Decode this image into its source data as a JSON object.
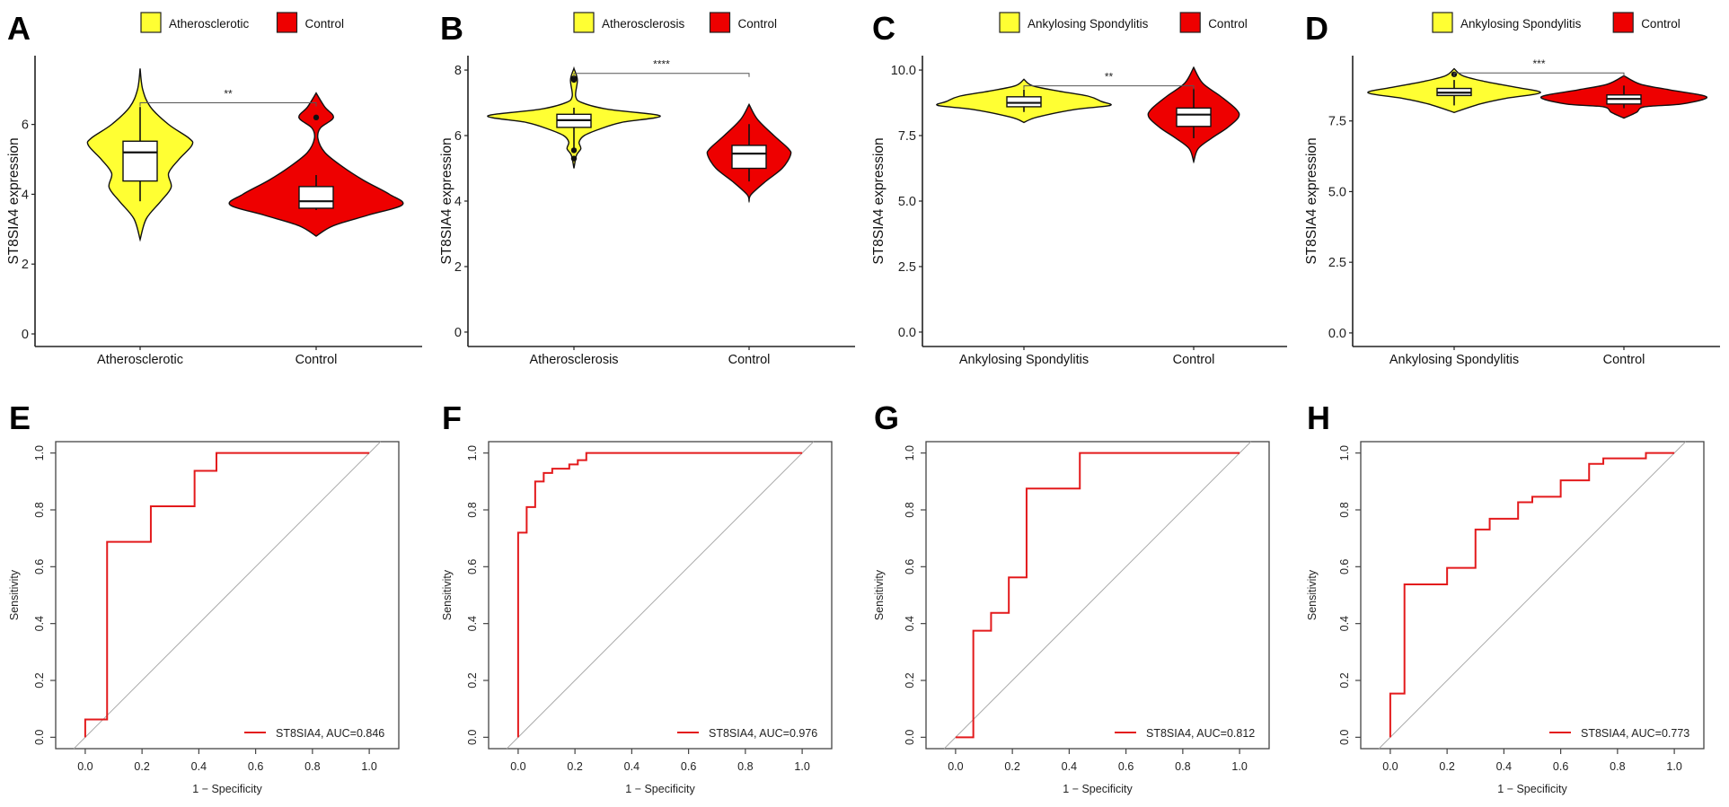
{
  "chart_data": [
    {
      "panel": "A",
      "type": "violin",
      "ylabel": "ST8SIA4 expression",
      "ylim": [
        -0.36,
        7.97
      ],
      "yticks": [
        0,
        2,
        4,
        6
      ],
      "ytick_labels": [
        "0",
        "2",
        "4",
        "6"
      ],
      "legend": [
        "Atherosclerotic",
        "Control"
      ],
      "categories": [
        "Atherosclerotic",
        "Control"
      ],
      "significance": {
        "label": "**",
        "y": 6.62
      },
      "groups": [
        {
          "name": "Atherosclerotic",
          "color": "#ffff33",
          "width_scale": 0.6,
          "density": [
            [
              7.6,
              0
            ],
            [
              7.0,
              0.05
            ],
            [
              6.5,
              0.2
            ],
            [
              6.0,
              0.55
            ],
            [
              5.6,
              0.95
            ],
            [
              5.4,
              1.0
            ],
            [
              5.0,
              0.75
            ],
            [
              4.6,
              0.55
            ],
            [
              4.2,
              0.6
            ],
            [
              3.8,
              0.4
            ],
            [
              3.3,
              0.12
            ],
            [
              2.7,
              0
            ]
          ],
          "box": {
            "q1": 4.38,
            "median": 5.2,
            "q3": 5.52,
            "lower": 3.8,
            "upper": 6.5
          },
          "outliers": []
        },
        {
          "name": "Control",
          "color": "#ee0000",
          "width_scale": 1.0,
          "density": [
            [
              6.9,
              0
            ],
            [
              6.5,
              0.1
            ],
            [
              6.2,
              0.2
            ],
            [
              5.9,
              0.05
            ],
            [
              5.6,
              0.02
            ],
            [
              5.2,
              0.1
            ],
            [
              4.8,
              0.3
            ],
            [
              4.4,
              0.55
            ],
            [
              4.0,
              0.85
            ],
            [
              3.7,
              1.0
            ],
            [
              3.4,
              0.6
            ],
            [
              3.1,
              0.2
            ],
            [
              2.8,
              0
            ]
          ],
          "box": {
            "q1": 3.6,
            "median": 3.8,
            "q3": 4.22,
            "lower": 3.55,
            "upper": 4.55
          },
          "outliers": [
            6.2
          ]
        }
      ]
    },
    {
      "panel": "B",
      "type": "violin",
      "ylabel": "ST8SIA4 expression",
      "ylim": [
        -0.44,
        8.44
      ],
      "yticks": [
        0,
        2,
        4,
        6,
        8
      ],
      "ytick_labels": [
        "0",
        "2",
        "4",
        "6",
        "8"
      ],
      "legend": [
        "Atherosclerosis",
        "Control"
      ],
      "categories": [
        "Atherosclerosis",
        "Control"
      ],
      "significance": {
        "label": "****",
        "y": 7.9
      },
      "groups": [
        {
          "name": "Atherosclerosis",
          "color": "#ffff33",
          "width_scale": 1.0,
          "density": [
            [
              8.05,
              0
            ],
            [
              7.7,
              0.04
            ],
            [
              7.2,
              0.02
            ],
            [
              7.0,
              0.1
            ],
            [
              6.8,
              0.4
            ],
            [
              6.6,
              1.0
            ],
            [
              6.4,
              0.55
            ],
            [
              6.2,
              0.3
            ],
            [
              6.0,
              0.12
            ],
            [
              5.8,
              0.06
            ],
            [
              5.6,
              0.08
            ],
            [
              5.4,
              0.03
            ],
            [
              5.0,
              0
            ]
          ],
          "box": {
            "q1": 6.25,
            "median": 6.47,
            "q3": 6.65,
            "lower": 5.6,
            "upper": 6.85
          },
          "outliers": [
            7.7,
            7.75,
            5.55,
            5.3
          ]
        },
        {
          "name": "Control",
          "color": "#ee0000",
          "width_scale": 0.48,
          "density": [
            [
              6.95,
              0
            ],
            [
              6.5,
              0.2
            ],
            [
              6.0,
              0.6
            ],
            [
              5.6,
              0.95
            ],
            [
              5.4,
              1.0
            ],
            [
              5.0,
              0.8
            ],
            [
              4.6,
              0.4
            ],
            [
              4.2,
              0.05
            ],
            [
              4.0,
              0
            ]
          ],
          "box": {
            "q1": 5.0,
            "median": 5.45,
            "q3": 5.7,
            "lower": 4.6,
            "upper": 6.35
          },
          "outliers": []
        }
      ]
    },
    {
      "panel": "C",
      "type": "violin",
      "ylabel": "ST8SIA4 expression",
      "ylim": [
        -0.55,
        10.55
      ],
      "yticks": [
        0,
        2.5,
        5,
        7.5,
        10
      ],
      "ytick_labels": [
        "0.0",
        "2.5",
        "5.0",
        "7.5",
        "10.0"
      ],
      "legend": [
        "Ankylosing Spondylitis",
        "Control"
      ],
      "categories": [
        "Ankylosing Spondylitis",
        "Control"
      ],
      "significance": {
        "label": "**",
        "y": 9.4
      },
      "groups": [
        {
          "name": "Ankylosing Spondylitis",
          "color": "#ffff33",
          "width_scale": 1.0,
          "density": [
            [
              9.65,
              0
            ],
            [
              9.4,
              0.1
            ],
            [
              9.2,
              0.4
            ],
            [
              9.0,
              0.75
            ],
            [
              8.8,
              0.9
            ],
            [
              8.65,
              1.0
            ],
            [
              8.5,
              0.6
            ],
            [
              8.2,
              0.15
            ],
            [
              8.0,
              0
            ]
          ],
          "box": {
            "q1": 8.6,
            "median": 8.75,
            "q3": 8.98,
            "lower": 8.4,
            "upper": 9.25
          },
          "outliers": []
        },
        {
          "name": "Control",
          "color": "#ee0000",
          "width_scale": 0.52,
          "density": [
            [
              10.1,
              0
            ],
            [
              9.5,
              0.2
            ],
            [
              9.0,
              0.6
            ],
            [
              8.5,
              0.95
            ],
            [
              8.2,
              1.0
            ],
            [
              7.8,
              0.75
            ],
            [
              7.4,
              0.4
            ],
            [
              7.0,
              0.1
            ],
            [
              6.5,
              0
            ]
          ],
          "box": {
            "q1": 7.85,
            "median": 8.3,
            "q3": 8.55,
            "lower": 7.4,
            "upper": 9.3
          },
          "outliers": []
        }
      ]
    },
    {
      "panel": "D",
      "type": "violin",
      "ylabel": "ST8SIA4 expression",
      "ylim": [
        -0.48,
        9.81
      ],
      "yticks": [
        0,
        2.5,
        5,
        7.5
      ],
      "ytick_labels": [
        "0.0",
        "2.5",
        "5.0",
        "7.5"
      ],
      "legend": [
        "Ankylosing Spondylitis",
        "Control"
      ],
      "categories": [
        "Ankylosing Spondylitis",
        "Control"
      ],
      "significance": {
        "label": "***",
        "y": 9.2
      },
      "groups": [
        {
          "name": "Ankylosing Spondylitis",
          "color": "#ffff33",
          "width_scale": 1.0,
          "density": [
            [
              9.35,
              0
            ],
            [
              9.1,
              0.1
            ],
            [
              8.9,
              0.35
            ],
            [
              8.7,
              0.7
            ],
            [
              8.5,
              1.0
            ],
            [
              8.3,
              0.6
            ],
            [
              8.1,
              0.3
            ],
            [
              7.8,
              0
            ]
          ],
          "box": {
            "q1": 8.4,
            "median": 8.5,
            "q3": 8.65,
            "lower": 8.05,
            "upper": 8.95
          },
          "outliers": [
            9.15
          ]
        },
        {
          "name": "Control",
          "color": "#ee0000",
          "width_scale": 0.96,
          "density": [
            [
              9.1,
              0
            ],
            [
              8.8,
              0.2
            ],
            [
              8.6,
              0.55
            ],
            [
              8.35,
              1.0
            ],
            [
              8.1,
              0.7
            ],
            [
              8.0,
              0.25
            ],
            [
              7.8,
              0.15
            ],
            [
              7.6,
              0
            ]
          ],
          "box": {
            "q1": 8.1,
            "median": 8.28,
            "q3": 8.42,
            "lower": 7.95,
            "upper": 8.75
          },
          "outliers": []
        }
      ]
    },
    {
      "panel": "E",
      "type": "line",
      "xlabel": "1 − Specificity",
      "ylabel": "Sensitivity",
      "xlim": [
        -0.104,
        1.104
      ],
      "ylim": [
        -0.04,
        1.04
      ],
      "ticks": [
        0,
        0.2,
        0.4,
        0.6,
        0.8,
        1.0
      ],
      "tick_labels": [
        "0.0",
        "0.2",
        "0.4",
        "0.6",
        "0.8",
        "1.0"
      ],
      "legend": "ST8SIA4, AUC=0.846",
      "color": "#e31a1c",
      "fpr": [
        0,
        0,
        0.077,
        0.077,
        0.231,
        0.231,
        0.385,
        0.385,
        0.462,
        0.462,
        1
      ],
      "tpr": [
        0,
        0.0625,
        0.0625,
        0.6875,
        0.6875,
        0.8125,
        0.8125,
        0.9375,
        0.9375,
        1,
        1
      ]
    },
    {
      "panel": "F",
      "type": "line",
      "xlabel": "1 − Specificity",
      "ylabel": "Sensitivity",
      "xlim": [
        -0.104,
        1.104
      ],
      "ylim": [
        -0.04,
        1.04
      ],
      "ticks": [
        0,
        0.2,
        0.4,
        0.6,
        0.8,
        1.0
      ],
      "tick_labels": [
        "0.0",
        "0.2",
        "0.4",
        "0.6",
        "0.8",
        "1.0"
      ],
      "legend": "ST8SIA4, AUC=0.976",
      "color": "#e31a1c",
      "fpr": [
        0,
        0,
        0.03,
        0.03,
        0.06,
        0.06,
        0.09,
        0.09,
        0.12,
        0.12,
        0.18,
        0.18,
        0.21,
        0.21,
        0.24,
        0.24,
        1
      ],
      "tpr": [
        0,
        0.72,
        0.72,
        0.81,
        0.81,
        0.9,
        0.9,
        0.93,
        0.93,
        0.945,
        0.945,
        0.96,
        0.96,
        0.975,
        0.975,
        1,
        1
      ]
    },
    {
      "panel": "G",
      "type": "line",
      "xlabel": "1 − Specificity",
      "ylabel": "Sensitivity",
      "xlim": [
        -0.104,
        1.104
      ],
      "ylim": [
        -0.04,
        1.04
      ],
      "ticks": [
        0,
        0.2,
        0.4,
        0.6,
        0.8,
        1.0
      ],
      "tick_labels": [
        "0.0",
        "0.2",
        "0.4",
        "0.6",
        "0.8",
        "1.0"
      ],
      "legend": "ST8SIA4, AUC=0.812",
      "color": "#e31a1c",
      "fpr": [
        0,
        0.0625,
        0.0625,
        0.125,
        0.125,
        0.1875,
        0.1875,
        0.25,
        0.25,
        0.4375,
        0.4375,
        1
      ],
      "tpr": [
        0,
        0,
        0.375,
        0.375,
        0.4375,
        0.4375,
        0.5625,
        0.5625,
        0.875,
        0.875,
        1,
        1
      ]
    },
    {
      "panel": "H",
      "type": "line",
      "xlabel": "1 − Specificity",
      "ylabel": "Sensitivity",
      "xlim": [
        -0.104,
        1.104
      ],
      "ylim": [
        -0.04,
        1.04
      ],
      "ticks": [
        0,
        0.2,
        0.4,
        0.6,
        0.8,
        1.0
      ],
      "tick_labels": [
        "0.0",
        "0.2",
        "0.4",
        "0.6",
        "0.8",
        "1.0"
      ],
      "legend": "ST8SIA4, AUC=0.773",
      "color": "#e31a1c",
      "fpr": [
        0,
        0,
        0.05,
        0.05,
        0.2,
        0.2,
        0.3,
        0.3,
        0.35,
        0.35,
        0.45,
        0.45,
        0.5,
        0.5,
        0.6,
        0.6,
        0.7,
        0.7,
        0.75,
        0.75,
        0.9,
        0.9,
        1
      ],
      "tpr": [
        0,
        0.154,
        0.154,
        0.538,
        0.538,
        0.596,
        0.596,
        0.731,
        0.731,
        0.769,
        0.769,
        0.827,
        0.827,
        0.846,
        0.846,
        0.904,
        0.904,
        0.962,
        0.962,
        0.981,
        0.981,
        1,
        1
      ]
    }
  ]
}
